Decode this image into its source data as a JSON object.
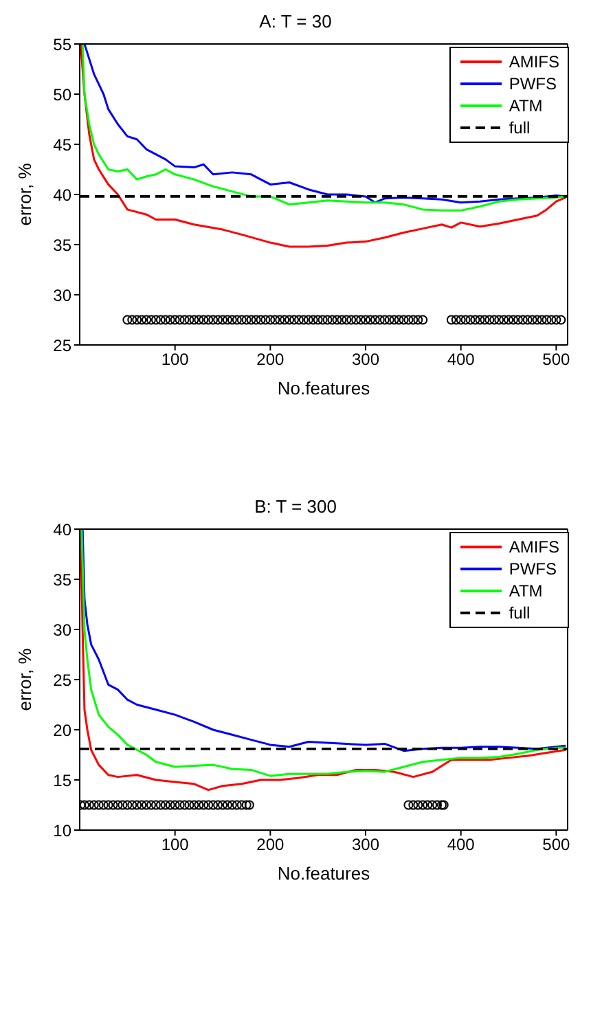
{
  "chart_data": [
    {
      "type": "line",
      "title": "A: T = 30",
      "xlabel": "No.features",
      "ylabel": "error, %",
      "xlim": [
        0,
        512
      ],
      "xticks": [
        100,
        200,
        300,
        400,
        500
      ],
      "ylim": [
        25,
        55
      ],
      "yticks": [
        25,
        30,
        35,
        40,
        45,
        50,
        55
      ],
      "legend": "top right",
      "series": [
        {
          "name": "AMIFS",
          "color": "#ff0000",
          "x": [
            1,
            5,
            10,
            15,
            20,
            30,
            40,
            50,
            70,
            80,
            100,
            120,
            150,
            170,
            200,
            220,
            240,
            260,
            280,
            300,
            320,
            340,
            360,
            380,
            390,
            400,
            420,
            440,
            460,
            480,
            490,
            500,
            510
          ],
          "values": [
            55,
            50,
            46,
            43.5,
            42.5,
            41,
            40,
            38.5,
            38,
            37.5,
            37.5,
            37,
            36.5,
            36,
            35.2,
            34.8,
            34.8,
            34.9,
            35.2,
            35.3,
            35.7,
            36.2,
            36.6,
            37,
            36.7,
            37.2,
            36.8,
            37.1,
            37.5,
            37.9,
            38.5,
            39.3,
            39.7
          ]
        },
        {
          "name": "PWFS",
          "color": "#0000ff",
          "x": [
            5,
            10,
            15,
            20,
            25,
            30,
            40,
            50,
            60,
            70,
            80,
            90,
            100,
            120,
            130,
            140,
            160,
            180,
            200,
            220,
            240,
            260,
            280,
            300,
            310,
            320,
            340,
            360,
            380,
            400,
            420,
            440,
            460,
            480,
            500,
            510
          ],
          "values": [
            55,
            53.5,
            52,
            51,
            50,
            48.5,
            47,
            45.8,
            45.5,
            44.5,
            44,
            43.5,
            42.8,
            42.7,
            43,
            42,
            42.2,
            42,
            41,
            41.2,
            40.5,
            40,
            40,
            39.8,
            39.2,
            39.6,
            39.7,
            39.6,
            39.5,
            39.2,
            39.3,
            39.5,
            39.6,
            39.7,
            39.9,
            39.8
          ]
        },
        {
          "name": "ATM",
          "color": "#00ff00",
          "x": [
            3,
            5,
            10,
            15,
            20,
            30,
            40,
            50,
            60,
            70,
            80,
            90,
            100,
            120,
            140,
            160,
            180,
            200,
            220,
            240,
            260,
            280,
            300,
            320,
            340,
            360,
            380,
            400,
            420,
            440,
            460,
            480,
            500,
            510
          ],
          "values": [
            55,
            50,
            47,
            45,
            44,
            42.5,
            42.3,
            42.5,
            41.5,
            41.8,
            42,
            42.5,
            42,
            41.5,
            40.8,
            40.3,
            39.8,
            39.8,
            39,
            39.2,
            39.4,
            39.3,
            39.2,
            39.2,
            39,
            38.5,
            38.4,
            38.4,
            38.8,
            39.3,
            39.5,
            39.6,
            39.7,
            39.8
          ]
        },
        {
          "name": "full",
          "color": "#000000",
          "line_style": "dashed",
          "x": [
            0,
            512
          ],
          "values": [
            39.8,
            39.8
          ]
        },
        {
          "type": "scatter",
          "color": "#000000",
          "marker": "circle",
          "x": [
            50,
            55,
            60,
            65,
            70,
            75,
            80,
            85,
            90,
            95,
            100,
            105,
            110,
            115,
            120,
            125,
            130,
            135,
            140,
            145,
            150,
            155,
            160,
            165,
            170,
            175,
            180,
            185,
            190,
            195,
            200,
            205,
            210,
            215,
            220,
            225,
            230,
            235,
            240,
            245,
            250,
            255,
            260,
            265,
            270,
            275,
            280,
            285,
            290,
            295,
            300,
            305,
            310,
            315,
            320,
            325,
            330,
            335,
            340,
            345,
            350,
            355,
            360,
            390,
            395,
            400,
            405,
            410,
            415,
            420,
            425,
            430,
            435,
            440,
            445,
            450,
            455,
            460,
            465,
            470,
            475,
            480,
            485,
            490,
            495,
            500,
            505
          ],
          "values": [
            27.5,
            27.5,
            27.5,
            27.5,
            27.5,
            27.5,
            27.5,
            27.5,
            27.5,
            27.5,
            27.5,
            27.5,
            27.5,
            27.5,
            27.5,
            27.5,
            27.5,
            27.5,
            27.5,
            27.5,
            27.5,
            27.5,
            27.5,
            27.5,
            27.5,
            27.5,
            27.5,
            27.5,
            27.5,
            27.5,
            27.5,
            27.5,
            27.5,
            27.5,
            27.5,
            27.5,
            27.5,
            27.5,
            27.5,
            27.5,
            27.5,
            27.5,
            27.5,
            27.5,
            27.5,
            27.5,
            27.5,
            27.5,
            27.5,
            27.5,
            27.5,
            27.5,
            27.5,
            27.5,
            27.5,
            27.5,
            27.5,
            27.5,
            27.5,
            27.5,
            27.5,
            27.5,
            27.5,
            27.5,
            27.5,
            27.5,
            27.5,
            27.5,
            27.5,
            27.5,
            27.5,
            27.5,
            27.5,
            27.5,
            27.5,
            27.5,
            27.5,
            27.5,
            27.5,
            27.5,
            27.5,
            27.5,
            27.5,
            27.5,
            27.5,
            27.5,
            27.5
          ]
        }
      ]
    },
    {
      "type": "line",
      "title": "B: T = 300",
      "xlabel": "No.features",
      "ylabel": "error, %",
      "xlim": [
        0,
        512
      ],
      "xticks": [
        100,
        200,
        300,
        400,
        500
      ],
      "ylim": [
        10,
        40
      ],
      "yticks": [
        10,
        15,
        20,
        25,
        30,
        35,
        40
      ],
      "legend": "top right",
      "series": [
        {
          "name": "AMIFS",
          "color": "#ff0000",
          "x": [
            1,
            3,
            5,
            8,
            12,
            20,
            30,
            40,
            60,
            80,
            100,
            120,
            135,
            150,
            170,
            190,
            210,
            230,
            250,
            270,
            290,
            310,
            330,
            350,
            370,
            390,
            410,
            430,
            450,
            470,
            490,
            510
          ],
          "values": [
            40,
            30,
            22,
            20,
            18,
            16.5,
            15.5,
            15.3,
            15.5,
            15,
            14.8,
            14.6,
            14,
            14.4,
            14.6,
            15,
            15,
            15.2,
            15.5,
            15.5,
            16,
            16,
            15.8,
            15.3,
            15.8,
            17,
            17,
            17,
            17.2,
            17.4,
            17.7,
            18
          ]
        },
        {
          "name": "PWFS",
          "color": "#0000ff",
          "x": [
            3,
            5,
            8,
            12,
            20,
            30,
            40,
            50,
            60,
            80,
            100,
            120,
            140,
            160,
            180,
            200,
            220,
            240,
            260,
            280,
            300,
            320,
            340,
            360,
            380,
            400,
            420,
            440,
            460,
            480,
            510
          ],
          "values": [
            40,
            33,
            30.5,
            28.5,
            27,
            24.5,
            24,
            23,
            22.5,
            22,
            21.5,
            20.8,
            20,
            19.5,
            19,
            18.5,
            18.3,
            18.8,
            18.7,
            18.6,
            18.5,
            18.6,
            17.9,
            18.1,
            18.2,
            18.2,
            18.3,
            18.3,
            18.2,
            18.1,
            18.4
          ]
        },
        {
          "name": "ATM",
          "color": "#00ff00",
          "x": [
            2,
            5,
            8,
            12,
            20,
            30,
            40,
            50,
            60,
            70,
            80,
            100,
            120,
            140,
            160,
            180,
            200,
            220,
            240,
            260,
            280,
            300,
            320,
            340,
            360,
            380,
            400,
            420,
            440,
            460,
            480,
            500,
            510
          ],
          "values": [
            40,
            30,
            27,
            24,
            21.5,
            20.3,
            19.5,
            18.5,
            18,
            17.5,
            16.8,
            16.3,
            16.4,
            16.5,
            16.1,
            16,
            15.4,
            15.6,
            15.6,
            15.6,
            15.8,
            15.9,
            15.8,
            16.3,
            16.8,
            17,
            17.2,
            17.2,
            17.3,
            17.6,
            18,
            18.2,
            18.2
          ]
        },
        {
          "name": "full",
          "color": "#000000",
          "line_style": "dashed",
          "x": [
            0,
            512
          ],
          "values": [
            18.1,
            18.1
          ]
        },
        {
          "type": "scatter",
          "color": "#000000",
          "marker": "circle",
          "x": [
            1,
            5,
            10,
            15,
            20,
            25,
            30,
            35,
            40,
            45,
            50,
            55,
            60,
            65,
            70,
            75,
            80,
            85,
            90,
            95,
            100,
            105,
            110,
            115,
            120,
            125,
            130,
            135,
            140,
            145,
            150,
            155,
            160,
            165,
            170,
            175,
            178,
            345,
            350,
            355,
            360,
            365,
            370,
            375,
            380,
            382
          ],
          "values": [
            12.5,
            12.5,
            12.5,
            12.5,
            12.5,
            12.5,
            12.5,
            12.5,
            12.5,
            12.5,
            12.5,
            12.5,
            12.5,
            12.5,
            12.5,
            12.5,
            12.5,
            12.5,
            12.5,
            12.5,
            12.5,
            12.5,
            12.5,
            12.5,
            12.5,
            12.5,
            12.5,
            12.5,
            12.5,
            12.5,
            12.5,
            12.5,
            12.5,
            12.5,
            12.5,
            12.5,
            12.5,
            12.5,
            12.5,
            12.5,
            12.5,
            12.5,
            12.5,
            12.5,
            12.5,
            12.5
          ]
        }
      ]
    }
  ]
}
